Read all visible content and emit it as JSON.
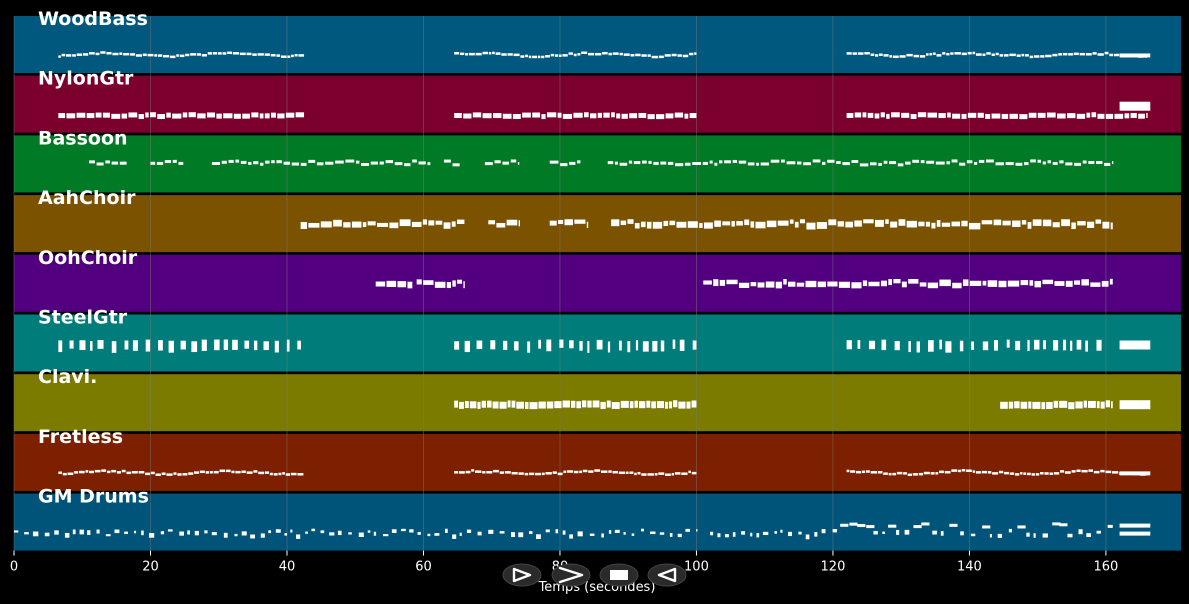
{
  "tracks": [
    {
      "name": "WoodBass",
      "color": "#00587f",
      "style": "bass",
      "segments": [
        [
          6.5,
          42.5
        ],
        [
          64.5,
          100
        ],
        [
          122,
          166
        ]
      ],
      "end_block": true
    },
    {
      "name": "NylonGtr",
      "color": "#7b002d",
      "style": "guitar",
      "segments": [
        [
          6.5,
          42.5
        ],
        [
          64.5,
          100
        ],
        [
          122,
          166
        ]
      ],
      "end_block": true
    },
    {
      "name": "Bassoon",
      "color": "#007a24",
      "style": "melody",
      "segments": [
        [
          11,
          16.5
        ],
        [
          20,
          25
        ],
        [
          29,
          61
        ],
        [
          63,
          65.5
        ],
        [
          69,
          74
        ],
        [
          78.5,
          83
        ],
        [
          87,
          161
        ]
      ],
      "end_block": false
    },
    {
      "name": "AahChoir",
      "color": "#7b5300",
      "style": "choir",
      "segments": [
        [
          42,
          66
        ],
        [
          69.5,
          74
        ],
        [
          78.5,
          84
        ],
        [
          87.5,
          161
        ]
      ],
      "end_block": false
    },
    {
      "name": "OohChoir",
      "color": "#530080",
      "style": "choir",
      "segments": [
        [
          53,
          58.5
        ],
        [
          59,
          66
        ],
        [
          101,
          161
        ]
      ],
      "end_block": false
    },
    {
      "name": "SteelGtr",
      "color": "#007d7b",
      "style": "steel",
      "segments": [
        [
          6.5,
          42.5
        ],
        [
          64.5,
          100
        ],
        [
          122,
          160
        ]
      ],
      "end_block": true
    },
    {
      "name": "Clavi.",
      "color": "#7b7b00",
      "style": "clavi",
      "segments": [
        [
          64.5,
          100
        ],
        [
          144.5,
          161
        ]
      ],
      "end_block": true
    },
    {
      "name": "Fretless",
      "color": "#7d2000",
      "style": "bass",
      "segments": [
        [
          6.5,
          42.5
        ],
        [
          64.5,
          100
        ],
        [
          122,
          166
        ]
      ],
      "end_block": true
    },
    {
      "name": "GM Drums",
      "color": "#00547a",
      "style": "drums",
      "segments": [
        [
          0,
          100
        ],
        [
          102,
          161
        ]
      ],
      "end_block": true
    }
  ],
  "x_axis": {
    "ticks": [
      0,
      20,
      40,
      60,
      80,
      100,
      120,
      140,
      160
    ],
    "max_seconds": 171,
    "label": "Temps (secondes)"
  },
  "transport": [
    {
      "name": "play-button",
      "icon": "play-icon"
    },
    {
      "name": "forward-button",
      "icon": "fast-forward-icon"
    },
    {
      "name": "stop-button",
      "icon": "stop-icon"
    },
    {
      "name": "rewind-button",
      "icon": "rewind-icon"
    }
  ],
  "colors": {
    "background": "#000000",
    "grid": "#7a7a7a",
    "notes": "#ffffff"
  }
}
